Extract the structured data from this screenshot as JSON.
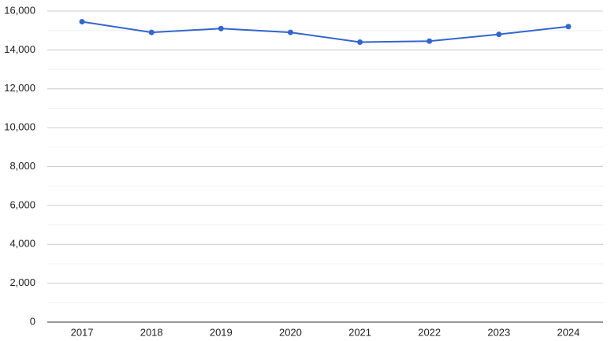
{
  "chart_data": {
    "type": "line",
    "categories": [
      "2017",
      "2018",
      "2019",
      "2020",
      "2021",
      "2022",
      "2023",
      "2024"
    ],
    "series": [
      {
        "color": "#3366cc",
        "values": [
          15450,
          14900,
          15100,
          14900,
          14400,
          14450,
          14800,
          15200
        ]
      }
    ],
    "ylim": [
      0,
      16000
    ],
    "yticks": [
      0,
      {
        "value": 2000,
        "label": "2,000"
      },
      {
        "value": 4000,
        "label": "4,000"
      },
      {
        "value": 6000,
        "label": "6,000"
      },
      {
        "value": 8000,
        "label": "8,000"
      },
      {
        "value": 10000,
        "label": "10,000"
      },
      {
        "value": 12000,
        "label": "12,000"
      },
      {
        "value": 14000,
        "label": "14,000"
      },
      {
        "value": 16000,
        "label": "16,000"
      }
    ],
    "grid": true,
    "minor_grid": true
  }
}
